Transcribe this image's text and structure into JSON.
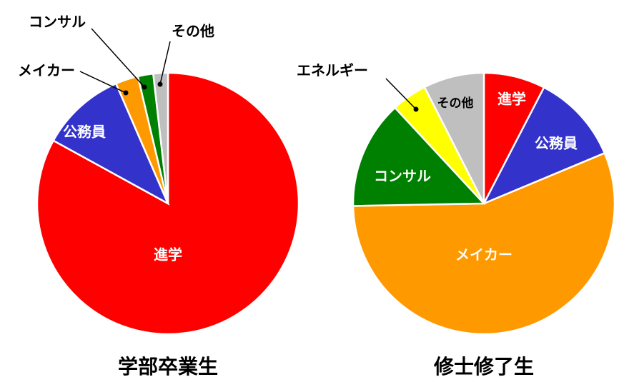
{
  "chart_data": [
    {
      "type": "pie",
      "title": "学部卒業生",
      "categories": [
        "進学",
        "公務員",
        "メイカー",
        "コンサル",
        "その他"
      ],
      "values": [
        83,
        10.5,
        2.8,
        1.9,
        1.8
      ],
      "colors": [
        "#ff0000",
        "#3333cc",
        "#ff9900",
        "#008000",
        "#bfbfbf"
      ]
    },
    {
      "type": "pie",
      "title": "修士修了生",
      "categories": [
        "進学",
        "公務員",
        "メイカー",
        "コンサル",
        "エネルギー",
        "その他"
      ],
      "values": [
        7.6,
        11.1,
        56,
        13.4,
        4.4,
        7.5
      ],
      "colors": [
        "#ff0000",
        "#3333cc",
        "#ff9900",
        "#008000",
        "#ffff00",
        "#bfbfbf"
      ]
    }
  ]
}
